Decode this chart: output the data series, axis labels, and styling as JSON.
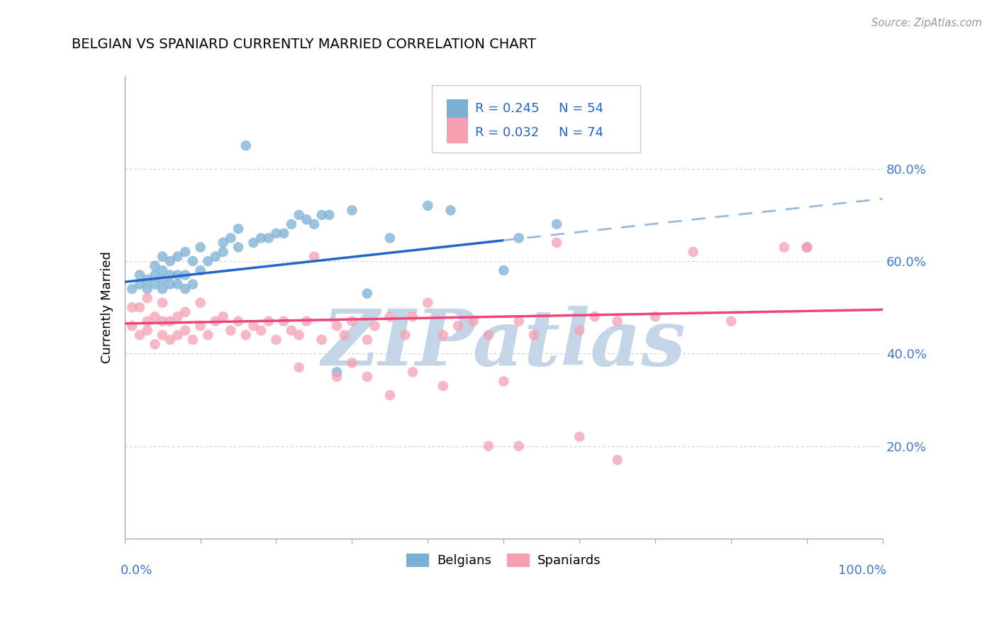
{
  "title": "BELGIAN VS SPANIARD CURRENTLY MARRIED CORRELATION CHART",
  "source": "Source: ZipAtlas.com",
  "ylabel": "Currently Married",
  "belgian_color": "#7BAFD4",
  "spaniard_color": "#F4A0B0",
  "belgian_line_color": "#2266CC",
  "spaniard_line_color": "#EE4477",
  "dashed_line_color": "#99BBDD",
  "background_color": "#FFFFFF",
  "watermark_color": "#C5D5E8",
  "xlim": [
    0.0,
    1.0
  ],
  "ylim": [
    0.0,
    1.0
  ],
  "belgian_x": [
    0.01,
    0.02,
    0.02,
    0.03,
    0.03,
    0.04,
    0.04,
    0.04,
    0.05,
    0.05,
    0.05,
    0.05,
    0.06,
    0.06,
    0.06,
    0.07,
    0.07,
    0.07,
    0.08,
    0.08,
    0.08,
    0.09,
    0.09,
    0.1,
    0.1,
    0.11,
    0.12,
    0.13,
    0.13,
    0.14,
    0.15,
    0.15,
    0.16,
    0.17,
    0.18,
    0.19,
    0.2,
    0.21,
    0.22,
    0.23,
    0.24,
    0.25,
    0.26,
    0.27,
    0.28,
    0.3,
    0.32,
    0.35,
    0.4,
    0.43,
    0.5,
    0.52,
    0.57,
    0.9
  ],
  "belgian_y": [
    0.54,
    0.55,
    0.57,
    0.54,
    0.56,
    0.55,
    0.57,
    0.59,
    0.54,
    0.56,
    0.58,
    0.61,
    0.55,
    0.57,
    0.6,
    0.55,
    0.57,
    0.61,
    0.54,
    0.57,
    0.62,
    0.55,
    0.6,
    0.58,
    0.63,
    0.6,
    0.61,
    0.62,
    0.64,
    0.65,
    0.63,
    0.67,
    0.85,
    0.64,
    0.65,
    0.65,
    0.66,
    0.66,
    0.68,
    0.7,
    0.69,
    0.68,
    0.7,
    0.7,
    0.36,
    0.71,
    0.53,
    0.65,
    0.72,
    0.71,
    0.58,
    0.65,
    0.68,
    0.63
  ],
  "spaniard_x": [
    0.01,
    0.01,
    0.02,
    0.02,
    0.03,
    0.03,
    0.03,
    0.04,
    0.04,
    0.05,
    0.05,
    0.05,
    0.06,
    0.06,
    0.07,
    0.07,
    0.08,
    0.08,
    0.09,
    0.1,
    0.1,
    0.11,
    0.12,
    0.13,
    0.14,
    0.15,
    0.16,
    0.17,
    0.18,
    0.19,
    0.2,
    0.21,
    0.22,
    0.23,
    0.24,
    0.25,
    0.26,
    0.28,
    0.29,
    0.3,
    0.32,
    0.33,
    0.35,
    0.37,
    0.38,
    0.4,
    0.42,
    0.44,
    0.46,
    0.48,
    0.5,
    0.52,
    0.54,
    0.57,
    0.6,
    0.62,
    0.65,
    0.7,
    0.75,
    0.8,
    0.87,
    0.9,
    0.23,
    0.28,
    0.3,
    0.32,
    0.35,
    0.38,
    0.42,
    0.48,
    0.52,
    0.6,
    0.65,
    0.9
  ],
  "spaniard_y": [
    0.46,
    0.5,
    0.44,
    0.5,
    0.45,
    0.47,
    0.52,
    0.42,
    0.48,
    0.44,
    0.47,
    0.51,
    0.43,
    0.47,
    0.44,
    0.48,
    0.45,
    0.49,
    0.43,
    0.46,
    0.51,
    0.44,
    0.47,
    0.48,
    0.45,
    0.47,
    0.44,
    0.46,
    0.45,
    0.47,
    0.43,
    0.47,
    0.45,
    0.44,
    0.47,
    0.61,
    0.43,
    0.46,
    0.44,
    0.47,
    0.43,
    0.46,
    0.48,
    0.44,
    0.48,
    0.51,
    0.44,
    0.46,
    0.47,
    0.44,
    0.34,
    0.47,
    0.44,
    0.64,
    0.45,
    0.48,
    0.47,
    0.48,
    0.62,
    0.47,
    0.63,
    0.63,
    0.37,
    0.35,
    0.38,
    0.35,
    0.31,
    0.36,
    0.33,
    0.2,
    0.2,
    0.22,
    0.17,
    0.63
  ],
  "belgian_line_x0": 0.0,
  "belgian_line_x_solid_end": 0.5,
  "belgian_line_x_dash_start": 0.5,
  "belgian_line_x1": 1.0,
  "belgian_line_y0": 0.555,
  "belgian_line_y_solid_end": 0.645,
  "belgian_line_y1": 0.735,
  "spaniard_line_y0": 0.465,
  "spaniard_line_y1": 0.495
}
